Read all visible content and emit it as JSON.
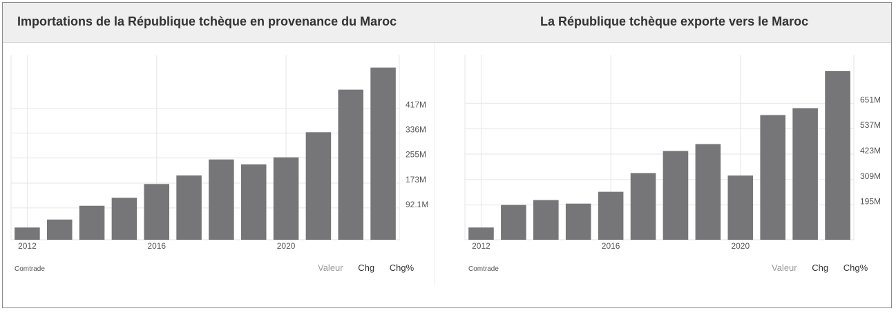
{
  "source_label": "Comtrade",
  "tabs": [
    "Valeur",
    "Chg",
    "Chg%"
  ],
  "colors": {
    "bar": "#767679",
    "grid": "#e6e6e6",
    "axis_text": "#555555",
    "header_bg": "#efefef"
  },
  "chart_data": [
    {
      "type": "bar",
      "title": "Importations de la République tchèque en provenance du Maroc",
      "x": [
        2012,
        2013,
        2014,
        2015,
        2016,
        2017,
        2018,
        2019,
        2020,
        2021,
        2022,
        2023
      ],
      "values": [
        28,
        54,
        99,
        125,
        170,
        198,
        250,
        234,
        257,
        339,
        478,
        550
      ],
      "xticks": [
        {
          "value": 2012,
          "label": "2012"
        },
        {
          "value": 2016,
          "label": "2016"
        },
        {
          "value": 2020,
          "label": "2020"
        }
      ],
      "yticks": [
        {
          "value": 92.1,
          "label": "92.1M"
        },
        {
          "value": 173,
          "label": "173M"
        },
        {
          "value": 255,
          "label": "255M"
        },
        {
          "value": 336,
          "label": "336M"
        },
        {
          "value": 417,
          "label": "417M"
        }
      ],
      "ylim": [
        -12,
        590
      ],
      "unit": "M",
      "grid": true,
      "axis_side": "right"
    },
    {
      "type": "bar",
      "title": "La République tchèque exporte vers le Maroc",
      "x": [
        2012,
        2013,
        2014,
        2015,
        2016,
        2017,
        2018,
        2019,
        2020,
        2021,
        2022,
        2023
      ],
      "values": [
        94,
        195,
        217,
        201,
        254,
        338,
        437,
        468,
        327,
        598,
        629,
        795
      ],
      "xticks": [
        {
          "value": 2012,
          "label": "2012"
        },
        {
          "value": 2016,
          "label": "2016"
        },
        {
          "value": 2020,
          "label": "2020"
        }
      ],
      "yticks": [
        {
          "value": 195,
          "label": "195M"
        },
        {
          "value": 309,
          "label": "309M"
        },
        {
          "value": 423,
          "label": "423M"
        },
        {
          "value": 537,
          "label": "537M"
        },
        {
          "value": 651,
          "label": "651M"
        }
      ],
      "ylim": [
        39,
        866
      ],
      "unit": "M",
      "grid": true,
      "axis_side": "right"
    }
  ]
}
